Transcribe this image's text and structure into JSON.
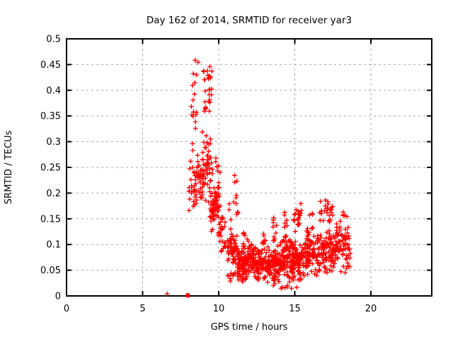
{
  "chart_data": {
    "type": "scatter",
    "title": "Day 162 of 2014, SRMTID for receiver yar3",
    "xlabel": "GPS time / hours",
    "ylabel": "SRMTID / TECUs",
    "xlim": [
      0,
      24
    ],
    "ylim": [
      0,
      0.5
    ],
    "xtick_values": [
      0,
      5,
      10,
      15,
      20
    ],
    "xtick_labels": [
      "0",
      "5",
      "10",
      "15",
      "20"
    ],
    "ytick_values": [
      0,
      0.05,
      0.1,
      0.15,
      0.2,
      0.25,
      0.3,
      0.35,
      0.4,
      0.45,
      0.5
    ],
    "ytick_labels": [
      "0",
      "0.05",
      "0.1",
      "0.15",
      "0.2",
      "0.25",
      "0.3",
      "0.35",
      "0.4",
      "0.45",
      "0.5"
    ],
    "grid": true,
    "grid_color": "#a6a6a6",
    "border_color": "#000000",
    "marker": "plus",
    "marker_color": "#ff0000",
    "legend": "none",
    "seed": 7,
    "special_points": [
      {
        "x": 6.62,
        "y": 0.004,
        "marker": "plus"
      },
      {
        "x": 7.97,
        "y": 0.001,
        "marker": "filled-square",
        "size": 6
      }
    ],
    "clusters": [
      {
        "x": [
          8.2,
          8.65
        ],
        "y": [
          0.36,
          0.495
        ],
        "n": 9,
        "shape": "uni"
      },
      {
        "x": [
          8.2,
          8.7
        ],
        "y": [
          0.27,
          0.36
        ],
        "n": 10,
        "shape": "uni"
      },
      {
        "x": [
          8.05,
          8.95
        ],
        "y": [
          0.155,
          0.27
        ],
        "n": 60,
        "shape": "tri"
      },
      {
        "x": [
          8.9,
          9.6
        ],
        "y": [
          0.17,
          0.33
        ],
        "n": 50,
        "shape": "tri"
      },
      {
        "x": [
          9.0,
          9.55
        ],
        "y": [
          0.33,
          0.475
        ],
        "n": 28,
        "shape": "tri"
      },
      {
        "x": [
          9.3,
          9.9
        ],
        "y": [
          0.125,
          0.22
        ],
        "n": 30,
        "shape": "tri"
      },
      {
        "x": [
          9.6,
          10.1
        ],
        "y": [
          0.235,
          0.27
        ],
        "n": 6,
        "shape": "uni"
      },
      {
        "x": [
          9.55,
          10.1
        ],
        "y": [
          0.115,
          0.235
        ],
        "n": 35,
        "shape": "tri"
      },
      {
        "x": [
          9.95,
          10.55
        ],
        "y": [
          0.085,
          0.16
        ],
        "n": 30,
        "shape": "tri"
      },
      {
        "x": [
          10.45,
          11.35
        ],
        "y": [
          0.13,
          0.235
        ],
        "n": 14,
        "shape": "uni"
      },
      {
        "x": [
          10.55,
          11.25
        ],
        "y": [
          0.055,
          0.125
        ],
        "n": 55,
        "shape": "tri"
      },
      {
        "x": [
          10.5,
          11.9
        ],
        "y": [
          0.025,
          0.05
        ],
        "n": 22,
        "shape": "uni"
      },
      {
        "x": [
          11.2,
          12.2
        ],
        "y": [
          0.032,
          0.105
        ],
        "n": 100,
        "shape": "tri"
      },
      {
        "x": [
          11.6,
          11.95
        ],
        "y": [
          0.1,
          0.13
        ],
        "n": 7,
        "shape": "uni"
      },
      {
        "x": [
          12.2,
          13.2
        ],
        "y": [
          0.027,
          0.1
        ],
        "n": 100,
        "shape": "tri"
      },
      {
        "x": [
          12.85,
          13.15
        ],
        "y": [
          0.1,
          0.13
        ],
        "n": 8,
        "shape": "uni"
      },
      {
        "x": [
          13.2,
          14.05
        ],
        "y": [
          0.022,
          0.105
        ],
        "n": 100,
        "shape": "tri"
      },
      {
        "x": [
          13.55,
          13.85
        ],
        "y": [
          0.1,
          0.155
        ],
        "n": 10,
        "shape": "uni"
      },
      {
        "x": [
          14.0,
          14.95
        ],
        "y": [
          0.025,
          0.115
        ],
        "n": 100,
        "shape": "tri"
      },
      {
        "x": [
          14.3,
          14.55
        ],
        "y": [
          0.11,
          0.18
        ],
        "n": 9,
        "shape": "uni"
      },
      {
        "x": [
          14.85,
          15.6
        ],
        "y": [
          0.02,
          0.12
        ],
        "n": 80,
        "shape": "tri"
      },
      {
        "x": [
          14.9,
          15.45
        ],
        "y": [
          0.125,
          0.188
        ],
        "n": 22,
        "shape": "tri"
      },
      {
        "x": [
          15.6,
          16.45
        ],
        "y": [
          0.03,
          0.125
        ],
        "n": 75,
        "shape": "tri"
      },
      {
        "x": [
          15.75,
          16.2
        ],
        "y": [
          0.105,
          0.165
        ],
        "n": 12,
        "shape": "uni"
      },
      {
        "x": [
          16.45,
          17.6
        ],
        "y": [
          0.04,
          0.135
        ],
        "n": 100,
        "shape": "tri"
      },
      {
        "x": [
          16.6,
          17.5
        ],
        "y": [
          0.135,
          0.196
        ],
        "n": 26,
        "shape": "tri"
      },
      {
        "x": [
          17.6,
          18.65
        ],
        "y": [
          0.04,
          0.15
        ],
        "n": 85,
        "shape": "tri"
      },
      {
        "x": [
          18.1,
          18.5
        ],
        "y": [
          0.15,
          0.168
        ],
        "n": 5,
        "shape": "uni"
      },
      {
        "x": [
          13.3,
          15.2
        ],
        "y": [
          0.012,
          0.022
        ],
        "n": 8,
        "shape": "uni"
      }
    ]
  }
}
